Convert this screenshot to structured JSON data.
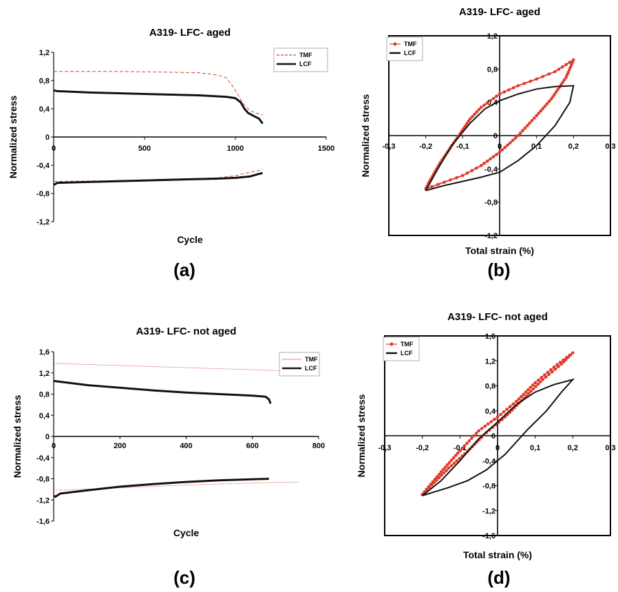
{
  "chart_data": [
    {
      "id": "a",
      "type": "line",
      "panel_label": "(a)",
      "title": "A319- LFC- aged",
      "xlabel": "Cycle",
      "ylabel": "Normalized stress",
      "xlim": [
        0,
        1500
      ],
      "ylim": [
        -1.2,
        1.2
      ],
      "xticks": [
        "0",
        "500",
        "1000",
        "1500"
      ],
      "yticks": [
        "1,2",
        "0,8",
        "0,4",
        "0",
        "-0,4",
        "-0,8",
        "-1,2"
      ],
      "legend_position": "top-right",
      "series": [
        {
          "name": "TMF",
          "color": "#e03a2a",
          "style": "dashed",
          "segments": [
            [
              [
                0,
                0.93
              ],
              [
                300,
                0.93
              ],
              [
                600,
                0.92
              ],
              [
                800,
                0.91
              ],
              [
                900,
                0.88
              ],
              [
                950,
                0.84
              ],
              [
                980,
                0.74
              ],
              [
                1010,
                0.62
              ],
              [
                1040,
                0.48
              ],
              [
                1070,
                0.4
              ],
              [
                1100,
                0.35
              ],
              [
                1140,
                0.32
              ],
              [
                1150,
                0.31
              ]
            ],
            [
              [
                0,
                -0.63
              ],
              [
                300,
                -0.62
              ],
              [
                600,
                -0.6
              ],
              [
                900,
                -0.58
              ],
              [
                1000,
                -0.55
              ],
              [
                1060,
                -0.51
              ],
              [
                1120,
                -0.48
              ],
              [
                1150,
                -0.46
              ]
            ]
          ]
        },
        {
          "name": "LCF",
          "color": "#111111",
          "style": "solid",
          "segments": [
            [
              [
                0,
                0.66
              ],
              [
                20,
                0.65
              ],
              [
                200,
                0.63
              ],
              [
                500,
                0.61
              ],
              [
                800,
                0.59
              ],
              [
                950,
                0.57
              ],
              [
                1000,
                0.55
              ],
              [
                1030,
                0.49
              ],
              [
                1050,
                0.4
              ],
              [
                1070,
                0.34
              ],
              [
                1100,
                0.3
              ],
              [
                1130,
                0.26
              ],
              [
                1150,
                0.19
              ]
            ],
            [
              [
                0,
                -0.68
              ],
              [
                20,
                -0.65
              ],
              [
                300,
                -0.63
              ],
              [
                600,
                -0.61
              ],
              [
                900,
                -0.59
              ],
              [
                1000,
                -0.58
              ],
              [
                1080,
                -0.56
              ],
              [
                1120,
                -0.53
              ],
              [
                1150,
                -0.51
              ]
            ]
          ]
        }
      ]
    },
    {
      "id": "b",
      "type": "line",
      "panel_label": "(b)",
      "title": "A319- LFC- aged",
      "xlabel": "Total strain (%)",
      "ylabel": "Normalized stress",
      "xlim": [
        -0.3,
        0.3
      ],
      "ylim": [
        -1.2,
        1.2
      ],
      "xticks": [
        "-0,3",
        "-0,2",
        "-0,1",
        "0",
        "0,1",
        "0,2",
        "0,3"
      ],
      "yticks": [
        "1,2",
        "0,8",
        "0,4",
        "0",
        "-0,4",
        "-0,8",
        "-1,2"
      ],
      "legend_position": "top-left",
      "series": [
        {
          "name": "TMF",
          "color": "#e03a2a",
          "style": "solid-markers",
          "points": [
            [
              -0.2,
              -0.64
            ],
            [
              -0.19,
              -0.55
            ],
            [
              -0.16,
              -0.32
            ],
            [
              -0.12,
              -0.06
            ],
            [
              -0.08,
              0.2
            ],
            [
              -0.05,
              0.34
            ],
            [
              0,
              0.5
            ],
            [
              0.05,
              0.6
            ],
            [
              0.1,
              0.68
            ],
            [
              0.15,
              0.77
            ],
            [
              0.2,
              0.91
            ],
            [
              0.18,
              0.7
            ],
            [
              0.14,
              0.44
            ],
            [
              0.1,
              0.24
            ],
            [
              0.05,
              0.0
            ],
            [
              0,
              -0.2
            ],
            [
              -0.05,
              -0.36
            ],
            [
              -0.1,
              -0.48
            ],
            [
              -0.15,
              -0.56
            ],
            [
              -0.2,
              -0.64
            ]
          ]
        },
        {
          "name": "LCF",
          "color": "#111111",
          "style": "solid",
          "points": [
            [
              -0.2,
              -0.66
            ],
            [
              -0.17,
              -0.42
            ],
            [
              -0.13,
              -0.12
            ],
            [
              -0.08,
              0.15
            ],
            [
              -0.04,
              0.32
            ],
            [
              0,
              0.42
            ],
            [
              0.05,
              0.5
            ],
            [
              0.1,
              0.56
            ],
            [
              0.15,
              0.59
            ],
            [
              0.2,
              0.6
            ],
            [
              0.19,
              0.4
            ],
            [
              0.15,
              0.12
            ],
            [
              0.1,
              -0.12
            ],
            [
              0.05,
              -0.3
            ],
            [
              0,
              -0.44
            ],
            [
              -0.05,
              -0.5
            ],
            [
              -0.1,
              -0.55
            ],
            [
              -0.15,
              -0.6
            ],
            [
              -0.2,
              -0.66
            ]
          ]
        }
      ]
    },
    {
      "id": "c",
      "type": "line",
      "panel_label": "(c)",
      "title": "A319- LFC- not aged",
      "xlabel": "Cycle",
      "ylabel": "Normalized stress",
      "xlim": [
        0,
        800
      ],
      "ylim": [
        -1.6,
        1.6
      ],
      "xticks": [
        "0",
        "200",
        "400",
        "600",
        "800"
      ],
      "yticks": [
        "1,6",
        "1,2",
        "0,8",
        "0,4",
        "0",
        "-0,4",
        "-0,8",
        "-1,2",
        "-1,6"
      ],
      "legend_position": "top-right",
      "series": [
        {
          "name": "TMF",
          "color": "#e03a2a",
          "style": "dotted",
          "segments": [
            [
              [
                0,
                1.38
              ],
              [
                200,
                1.34
              ],
              [
                400,
                1.3
              ],
              [
                600,
                1.26
              ],
              [
                740,
                1.23
              ]
            ],
            [
              [
                0,
                -1.02
              ],
              [
                200,
                -0.97
              ],
              [
                400,
                -0.92
              ],
              [
                600,
                -0.88
              ],
              [
                740,
                -0.86
              ]
            ]
          ]
        },
        {
          "name": "LCF",
          "color": "#111111",
          "style": "solid",
          "segments": [
            [
              [
                0,
                1.05
              ],
              [
                10,
                1.04
              ],
              [
                100,
                0.97
              ],
              [
                200,
                0.92
              ],
              [
                300,
                0.87
              ],
              [
                400,
                0.83
              ],
              [
                500,
                0.8
              ],
              [
                600,
                0.77
              ],
              [
                640,
                0.75
              ],
              [
                650,
                0.7
              ],
              [
                655,
                0.62
              ]
            ],
            [
              [
                0,
                -1.12
              ],
              [
                5,
                -1.14
              ],
              [
                20,
                -1.08
              ],
              [
                100,
                -1.02
              ],
              [
                200,
                -0.95
              ],
              [
                300,
                -0.9
              ],
              [
                400,
                -0.86
              ],
              [
                500,
                -0.83
              ],
              [
                600,
                -0.81
              ],
              [
                650,
                -0.8
              ]
            ]
          ]
        }
      ]
    },
    {
      "id": "d",
      "type": "line",
      "panel_label": "(d)",
      "title": "A319- LFC- not aged",
      "xlabel": "Total strain (%)",
      "ylabel": "Normalized stress",
      "xlim": [
        -0.3,
        0.3
      ],
      "ylim": [
        -1.6,
        1.6
      ],
      "xticks": [
        "-0,3",
        "-0,2",
        "-0,1",
        "0",
        "0,1",
        "0,2",
        "0,3"
      ],
      "yticks": [
        "1,6",
        "1,2",
        "0,8",
        "0,4",
        "0",
        "-0,4",
        "-0,8",
        "-1,2",
        "-1,6"
      ],
      "legend_position": "top-left",
      "series": [
        {
          "name": "TMF",
          "color": "#e03a2a",
          "style": "dotted-markers",
          "points": [
            [
              -0.2,
              -0.94
            ],
            [
              -0.15,
              -0.58
            ],
            [
              -0.1,
              -0.24
            ],
            [
              -0.05,
              0.08
            ],
            [
              0,
              0.3
            ],
            [
              0.05,
              0.55
            ],
            [
              0.1,
              0.85
            ],
            [
              0.15,
              1.1
            ],
            [
              0.2,
              1.33
            ],
            [
              0.17,
              1.15
            ],
            [
              0.12,
              0.9
            ],
            [
              0.07,
              0.6
            ],
            [
              0.02,
              0.3
            ],
            [
              -0.03,
              0.05
            ],
            [
              -0.08,
              -0.25
            ],
            [
              -0.13,
              -0.52
            ],
            [
              -0.2,
              -0.94
            ]
          ]
        },
        {
          "name": "LCF",
          "color": "#111111",
          "style": "solid",
          "points": [
            [
              -0.2,
              -0.96
            ],
            [
              -0.15,
              -0.72
            ],
            [
              -0.1,
              -0.4
            ],
            [
              -0.05,
              -0.05
            ],
            [
              0,
              0.22
            ],
            [
              0.05,
              0.5
            ],
            [
              0.1,
              0.7
            ],
            [
              0.15,
              0.82
            ],
            [
              0.2,
              0.9
            ],
            [
              0.17,
              0.7
            ],
            [
              0.13,
              0.4
            ],
            [
              0.08,
              0.1
            ],
            [
              0.02,
              -0.3
            ],
            [
              -0.03,
              -0.55
            ],
            [
              -0.08,
              -0.72
            ],
            [
              -0.13,
              -0.83
            ],
            [
              -0.2,
              -0.96
            ]
          ]
        }
      ]
    }
  ]
}
